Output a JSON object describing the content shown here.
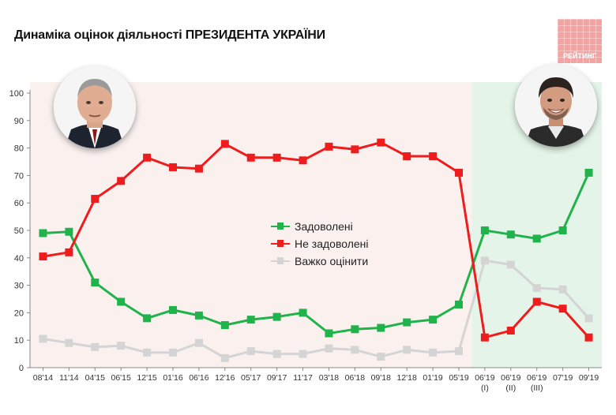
{
  "header": {
    "title": "Динаміка оцінок діяльності ПРЕЗИДЕНТА УКРАЇНИ",
    "logo_text": "РЕЙТИНГ"
  },
  "colors": {
    "satisfied": "#21b34b",
    "not_satisfied": "#ee1c1c",
    "hard_to_say": "#d4d4d4",
    "period1_bg": "#faf1ef",
    "period2_bg": "#e4f4e8"
  },
  "chart_data": {
    "type": "line",
    "categories": [
      "08'14",
      "11'14",
      "04'15",
      "06'15",
      "12'15",
      "01'16",
      "06'16",
      "12'16",
      "05'17",
      "09'17",
      "11'17",
      "03'18",
      "06'18",
      "09'18",
      "12'18",
      "01'19",
      "05'19",
      "06'19\n(I)",
      "06'19\n(II)",
      "06'19\n(III)",
      "07'19",
      "09'19"
    ],
    "ylim": [
      0,
      100
    ],
    "yticks": [
      0,
      10,
      20,
      30,
      40,
      50,
      60,
      70,
      80,
      90,
      100
    ],
    "legend_position": "center",
    "series": [
      {
        "name": "Задоволені",
        "color": "#21b34b",
        "values": [
          49,
          49.5,
          31,
          24,
          18,
          21,
          19,
          15.5,
          17.5,
          18.5,
          20,
          12.5,
          14,
          14.5,
          16.5,
          17.5,
          23,
          50,
          48.5,
          47,
          50,
          71
        ]
      },
      {
        "name": "Не задоволені",
        "color": "#ee1c1c",
        "values": [
          40.5,
          42,
          61.5,
          68,
          76.5,
          73,
          72.5,
          81.5,
          76.5,
          76.5,
          75.5,
          80.5,
          79.5,
          82,
          77,
          77,
          71,
          11,
          13.5,
          24,
          21.5,
          11
        ]
      },
      {
        "name": "Важко оцінити",
        "color": "#d4d4d4",
        "values": [
          10.5,
          9,
          7.5,
          8,
          5.5,
          5.5,
          9,
          3.5,
          6,
          5,
          5,
          7,
          6.5,
          4,
          6.5,
          5.5,
          6,
          39,
          37.5,
          29,
          28.5,
          18
        ]
      }
    ]
  },
  "photos": {
    "left_icon": "president-portrait-left",
    "right_icon": "president-portrait-right"
  }
}
